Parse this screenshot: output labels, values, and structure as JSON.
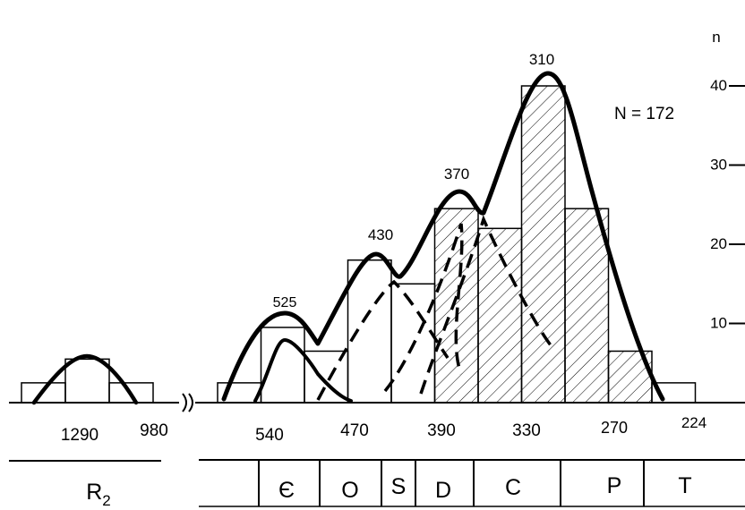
{
  "chart_data": {
    "type": "bar",
    "annotation": "N = 172",
    "ylabel": "n",
    "yticks": [
      10,
      20,
      30,
      40
    ],
    "ylim": [
      0,
      43
    ],
    "age_ticks": {
      "left": [
        "1290",
        "980"
      ],
      "right": [
        "540",
        "470",
        "390",
        "330",
        "270",
        "224"
      ]
    },
    "peak_labels": [
      "525",
      "430",
      "370",
      "310"
    ],
    "period_labels": {
      "left": "R",
      "left_sub": "2",
      "right": [
        "Є",
        "O",
        "S",
        "D",
        "C",
        "P",
        "T"
      ]
    },
    "histogram_left": {
      "values": [
        2.5,
        5.5,
        2.5
      ]
    },
    "histogram_right": {
      "values": [
        2.5,
        9.5,
        6.5,
        18,
        15,
        24.5,
        22,
        40,
        24.5,
        6.5,
        2.5
      ],
      "hatched": [
        false,
        false,
        false,
        false,
        false,
        true,
        true,
        true,
        true,
        true,
        false
      ]
    },
    "colors": {
      "ink": "#000000",
      "background": "#ffffff"
    }
  }
}
